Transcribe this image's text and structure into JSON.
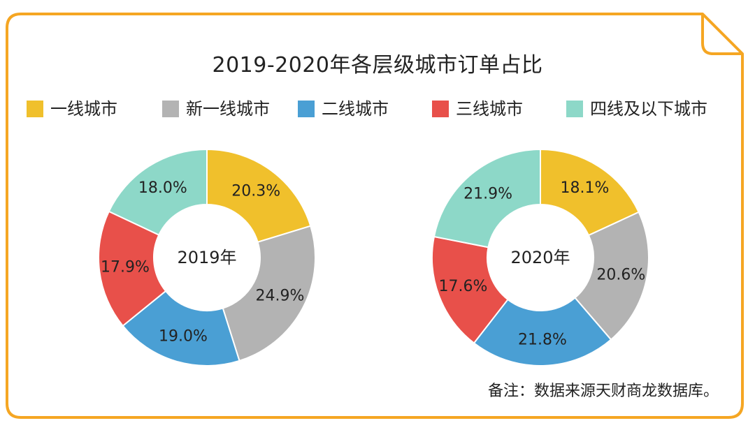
{
  "colors": {
    "frame": "#F5A623",
    "tier1": "#F0C02C",
    "new_tier1": "#B3B3B3",
    "tier2": "#4A9FD4",
    "tier3": "#E8504A",
    "tier4_below": "#8DD8C8",
    "label_text": "#222222"
  },
  "legend": [
    {
      "label": "一线城市",
      "color": "#F0C02C"
    },
    {
      "label": "新一线城市",
      "color": "#B3B3B3"
    },
    {
      "label": "二线城市",
      "color": "#4A9FD4"
    },
    {
      "label": "三线城市",
      "color": "#E8504A"
    },
    {
      "label": "四线及以下城市",
      "color": "#8DD8C8"
    }
  ],
  "footnote": "备注：数据来源天财商龙数据库。",
  "chart_data": {
    "type": "pie",
    "title": "2019-2020年各层级城市订单占比",
    "categories": [
      "一线城市",
      "新一线城市",
      "二线城市",
      "三线城市",
      "四线及以下城市"
    ],
    "hole": true,
    "series": [
      {
        "name": "2019年",
        "values": [
          20.3,
          24.9,
          19.0,
          17.9,
          18.0
        ],
        "labels": [
          "20.3%",
          "24.9%",
          "19.0%",
          "17.9%",
          "18.0%"
        ]
      },
      {
        "name": "2020年",
        "values": [
          18.1,
          20.6,
          21.8,
          17.6,
          21.9
        ],
        "labels": [
          "18.1%",
          "20.6%",
          "21.8%",
          "17.6%",
          "21.9%"
        ]
      }
    ],
    "legend_position": "top"
  }
}
